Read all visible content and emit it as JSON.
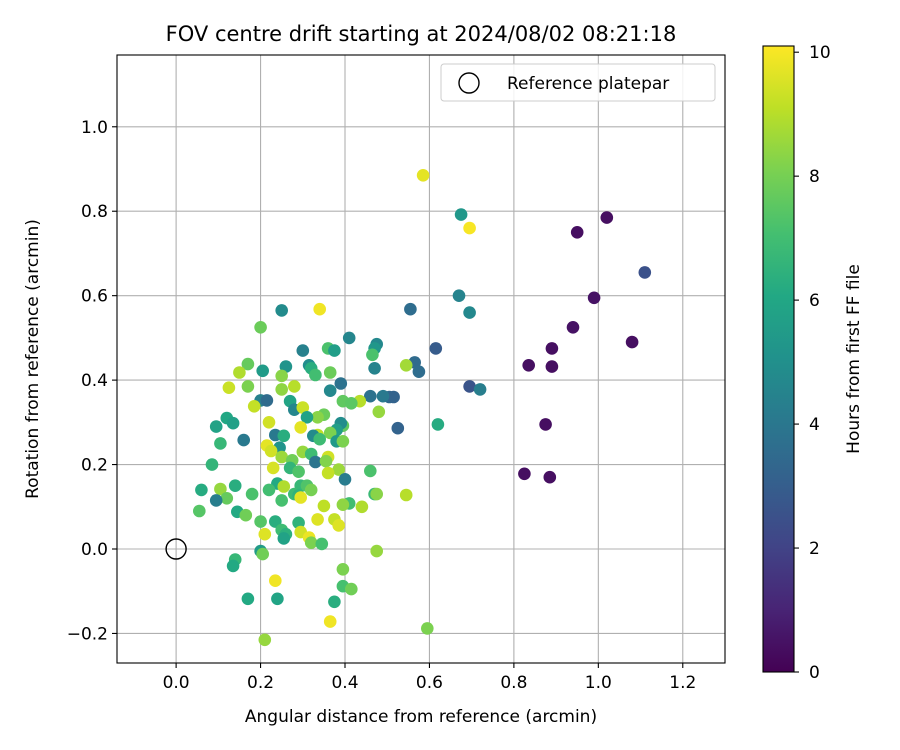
{
  "chart_data": {
    "type": "scatter",
    "title": "FOV centre drift starting at 2024/08/02 08:21:18",
    "xlabel": "Angular distance from reference (arcmin)",
    "ylabel": "Rotation from reference (arcmin)",
    "xlim": [
      -0.14,
      1.3
    ],
    "ylim": [
      -0.27,
      1.17
    ],
    "xticks": [
      "0.0",
      "0.2",
      "0.4",
      "0.6",
      "0.8",
      "1.0",
      "1.2"
    ],
    "yticks": [
      "−0.2",
      "0.0",
      "0.2",
      "0.4",
      "0.6",
      "0.8",
      "1.0"
    ],
    "grid": true,
    "legend": {
      "position": "top-right",
      "label": "Reference platepar"
    },
    "colorbar": {
      "label": "Hours from first FF file",
      "min": 0,
      "max": 10.1,
      "ticks": [
        "0",
        "2",
        "4",
        "6",
        "8",
        "10"
      ],
      "colormap": "viridis"
    },
    "reference_point": {
      "x": 0.0,
      "y": 0.0
    },
    "series": [
      {
        "points": [
          [
            1.02,
            0.785,
            0.4
          ],
          [
            0.95,
            0.75,
            0.4
          ],
          [
            0.99,
            0.595,
            0.5
          ],
          [
            1.08,
            0.49,
            0.4
          ],
          [
            0.94,
            0.525,
            0.5
          ],
          [
            0.89,
            0.475,
            0.4
          ],
          [
            0.835,
            0.435,
            0.4
          ],
          [
            0.89,
            0.432,
            0.4
          ],
          [
            0.875,
            0.295,
            0.4
          ],
          [
            0.825,
            0.178,
            0.4
          ],
          [
            0.885,
            0.17,
            0.4
          ],
          [
            1.11,
            0.655,
            2.5
          ],
          [
            0.695,
            0.385,
            2.6
          ],
          [
            0.72,
            0.378,
            4.3
          ],
          [
            0.675,
            0.792,
            5.3
          ],
          [
            0.67,
            0.6,
            4.5
          ],
          [
            0.695,
            0.56,
            4.7
          ],
          [
            0.615,
            0.475,
            2.9
          ],
          [
            0.555,
            0.568,
            3.6
          ],
          [
            0.565,
            0.442,
            3.5
          ],
          [
            0.575,
            0.42,
            3.6
          ],
          [
            0.505,
            0.36,
            3.4
          ],
          [
            0.515,
            0.36,
            3.2
          ],
          [
            0.525,
            0.286,
            3.2
          ],
          [
            0.62,
            0.295,
            6.2
          ],
          [
            0.585,
            0.885,
            9.7
          ],
          [
            0.695,
            0.76,
            10.0
          ],
          [
            0.34,
            0.568,
            9.9
          ],
          [
            0.25,
            0.565,
            4.8
          ],
          [
            0.2,
            0.525,
            7.8
          ],
          [
            0.41,
            0.5,
            4.6
          ],
          [
            0.475,
            0.485,
            4.7
          ],
          [
            0.47,
            0.475,
            5.3
          ],
          [
            0.36,
            0.475,
            7.2
          ],
          [
            0.375,
            0.47,
            5.6
          ],
          [
            0.3,
            0.47,
            4.4
          ],
          [
            0.465,
            0.46,
            7.2
          ],
          [
            0.545,
            0.435,
            8.7
          ],
          [
            0.17,
            0.438,
            7.7
          ],
          [
            0.26,
            0.432,
            5.2
          ],
          [
            0.315,
            0.435,
            4.9
          ],
          [
            0.32,
            0.428,
            6.3
          ],
          [
            0.47,
            0.428,
            4.5
          ],
          [
            0.205,
            0.422,
            5.5
          ],
          [
            0.15,
            0.418,
            8.9
          ],
          [
            0.25,
            0.41,
            8.3
          ],
          [
            0.33,
            0.412,
            7.0
          ],
          [
            0.365,
            0.418,
            7.8
          ],
          [
            0.39,
            0.392,
            3.8
          ],
          [
            0.28,
            0.385,
            9.0
          ],
          [
            0.25,
            0.378,
            8.4
          ],
          [
            0.365,
            0.375,
            4.7
          ],
          [
            0.125,
            0.382,
            9.3
          ],
          [
            0.17,
            0.385,
            8.1
          ],
          [
            0.46,
            0.362,
            3.8
          ],
          [
            0.49,
            0.362,
            4.1
          ],
          [
            0.2,
            0.352,
            4.4
          ],
          [
            0.215,
            0.352,
            3.5
          ],
          [
            0.27,
            0.35,
            5.9
          ],
          [
            0.395,
            0.35,
            7.6
          ],
          [
            0.435,
            0.35,
            9.0
          ],
          [
            0.415,
            0.345,
            7.5
          ],
          [
            0.185,
            0.338,
            9.2
          ],
          [
            0.28,
            0.33,
            4.6
          ],
          [
            0.3,
            0.335,
            9.3
          ],
          [
            0.48,
            0.325,
            8.5
          ],
          [
            0.35,
            0.318,
            7.8
          ],
          [
            0.335,
            0.312,
            8.3
          ],
          [
            0.31,
            0.312,
            5.8
          ],
          [
            0.12,
            0.31,
            6.0
          ],
          [
            0.135,
            0.298,
            5.7
          ],
          [
            0.22,
            0.3,
            9.4
          ],
          [
            0.395,
            0.292,
            7.6
          ],
          [
            0.095,
            0.29,
            5.8
          ],
          [
            0.295,
            0.288,
            9.7
          ],
          [
            0.39,
            0.298,
            4.9
          ],
          [
            0.38,
            0.282,
            5.6
          ],
          [
            0.365,
            0.275,
            8.1
          ],
          [
            0.335,
            0.27,
            9.1
          ],
          [
            0.235,
            0.27,
            4.1
          ],
          [
            0.325,
            0.268,
            4.8
          ],
          [
            0.255,
            0.268,
            6.3
          ],
          [
            0.16,
            0.258,
            4.1
          ],
          [
            0.34,
            0.26,
            6.9
          ],
          [
            0.38,
            0.255,
            5.4
          ],
          [
            0.395,
            0.255,
            8.1
          ],
          [
            0.105,
            0.25,
            6.7
          ],
          [
            0.245,
            0.24,
            5.2
          ],
          [
            0.215,
            0.245,
            9.7
          ],
          [
            0.225,
            0.232,
            9.4
          ],
          [
            0.3,
            0.23,
            8.5
          ],
          [
            0.32,
            0.225,
            6.9
          ],
          [
            0.36,
            0.218,
            9.4
          ],
          [
            0.25,
            0.218,
            8.6
          ],
          [
            0.275,
            0.21,
            7.9
          ],
          [
            0.33,
            0.206,
            3.9
          ],
          [
            0.355,
            0.208,
            8.2
          ],
          [
            0.23,
            0.192,
            9.5
          ],
          [
            0.27,
            0.192,
            6.6
          ],
          [
            0.085,
            0.2,
            6.6
          ],
          [
            0.385,
            0.188,
            8.6
          ],
          [
            0.36,
            0.18,
            9.2
          ],
          [
            0.29,
            0.183,
            7.3
          ],
          [
            0.4,
            0.165,
            4.2
          ],
          [
            0.46,
            0.185,
            7.2
          ],
          [
            0.24,
            0.155,
            6.1
          ],
          [
            0.255,
            0.148,
            8.9
          ],
          [
            0.295,
            0.15,
            6.7
          ],
          [
            0.31,
            0.15,
            7.3
          ],
          [
            0.06,
            0.14,
            6.2
          ],
          [
            0.14,
            0.15,
            6.3
          ],
          [
            0.105,
            0.142,
            8.5
          ],
          [
            0.22,
            0.14,
            7.0
          ],
          [
            0.32,
            0.14,
            8.0
          ],
          [
            0.28,
            0.13,
            6.9
          ],
          [
            0.29,
            0.127,
            6.5
          ],
          [
            0.47,
            0.13,
            6.8
          ],
          [
            0.475,
            0.13,
            8.3
          ],
          [
            0.545,
            0.128,
            9.0
          ],
          [
            0.18,
            0.13,
            7.2
          ],
          [
            0.12,
            0.12,
            7.7
          ],
          [
            0.25,
            0.115,
            7.1
          ],
          [
            0.095,
            0.115,
            4.3
          ],
          [
            0.295,
            0.122,
            9.7
          ],
          [
            0.41,
            0.108,
            7.0
          ],
          [
            0.35,
            0.102,
            9.1
          ],
          [
            0.395,
            0.105,
            8.4
          ],
          [
            0.44,
            0.1,
            8.9
          ],
          [
            0.055,
            0.09,
            7.4
          ],
          [
            0.145,
            0.088,
            6.1
          ],
          [
            0.165,
            0.08,
            7.9
          ],
          [
            0.335,
            0.07,
            9.6
          ],
          [
            0.375,
            0.07,
            9.2
          ],
          [
            0.2,
            0.065,
            7.4
          ],
          [
            0.235,
            0.065,
            6.3
          ],
          [
            0.29,
            0.062,
            6.5
          ],
          [
            0.385,
            0.056,
            9.6
          ],
          [
            0.25,
            0.045,
            6.9
          ],
          [
            0.26,
            0.035,
            6.4
          ],
          [
            0.21,
            0.035,
            9.6
          ],
          [
            0.295,
            0.04,
            9.4
          ],
          [
            0.255,
            0.025,
            5.8
          ],
          [
            0.315,
            0.027,
            9.8
          ],
          [
            0.32,
            0.015,
            8.1
          ],
          [
            0.345,
            0.012,
            7.1
          ],
          [
            0.2,
            -0.005,
            5.5
          ],
          [
            0.205,
            -0.012,
            7.9
          ],
          [
            0.475,
            -0.005,
            8.5
          ],
          [
            0.14,
            -0.025,
            6.7
          ],
          [
            0.135,
            -0.04,
            6.1
          ],
          [
            0.395,
            -0.048,
            8.1
          ],
          [
            0.235,
            -0.075,
            9.9
          ],
          [
            0.395,
            -0.088,
            7.1
          ],
          [
            0.415,
            -0.095,
            7.9
          ],
          [
            0.17,
            -0.118,
            6.1
          ],
          [
            0.24,
            -0.118,
            5.9
          ],
          [
            0.375,
            -0.125,
            6.3
          ],
          [
            0.365,
            -0.172,
            9.9
          ],
          [
            0.595,
            -0.188,
            8.1
          ],
          [
            0.21,
            -0.215,
            8.5
          ]
        ]
      }
    ]
  }
}
